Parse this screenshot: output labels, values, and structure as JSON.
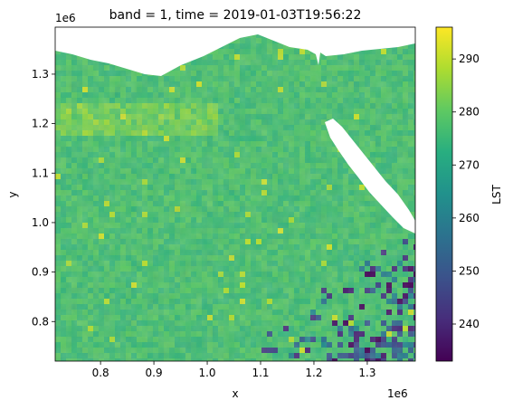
{
  "chart_data": {
    "type": "heatmap",
    "title": "band = 1, time = 2019-01-03T19:56:22",
    "xlabel": "x",
    "ylabel": "y",
    "x_offset_label": "1e6",
    "y_offset_label": "1e6",
    "xlim": [
      0.715,
      1.39
    ],
    "ylim": [
      0.72,
      1.395
    ],
    "xticks": [
      0.8,
      0.9,
      1.0,
      1.1,
      1.2,
      1.3
    ],
    "yticks": [
      0.8,
      0.9,
      1.0,
      1.1,
      1.2,
      1.3
    ],
    "xtick_labels": [
      "0.8",
      "0.9",
      "1.0",
      "1.1",
      "1.2",
      "1.3"
    ],
    "ytick_labels": [
      "0.8",
      "0.9",
      "1.0",
      "1.1",
      "1.2",
      "1.3"
    ],
    "colorbar": {
      "label": "LST",
      "colormap": "viridis",
      "range": [
        233,
        296
      ],
      "ticks": [
        240,
        250,
        260,
        270,
        280,
        290
      ],
      "tick_labels": [
        "240",
        "250",
        "260",
        "270",
        "280",
        "290"
      ]
    },
    "field": {
      "typical_value": 277,
      "cool_region": "lower-right",
      "cool_region_min": 233,
      "warm_streaks_max": 292
    },
    "grid": false
  }
}
